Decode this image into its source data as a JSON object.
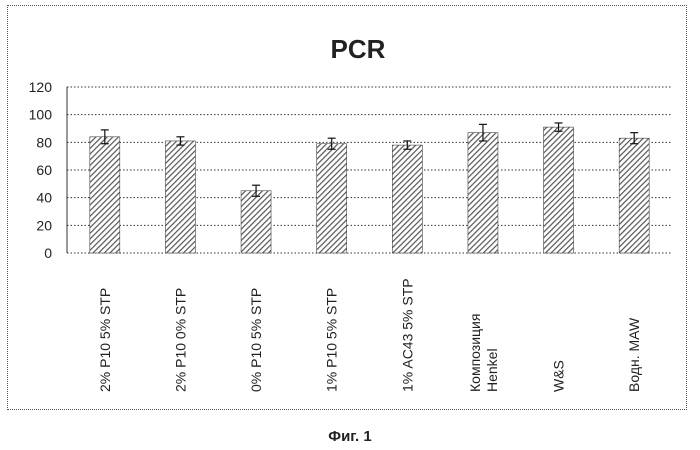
{
  "caption": "Фиг. 1",
  "chart_data": {
    "type": "bar",
    "title": "PCR",
    "xlabel": "",
    "ylabel": "",
    "ylim": [
      0,
      120
    ],
    "yticks": [
      0,
      20,
      40,
      60,
      80,
      100,
      120
    ],
    "grid": true,
    "legend": "none",
    "categories": [
      "2% P10 5% STP",
      "2% P10 0% STP",
      "0% P10 5% STP",
      "1% P10 5% STP",
      "1% AC43 5% STP",
      "Композиция Henkel",
      "W&S",
      "Водн. MAW"
    ],
    "values": [
      84,
      81,
      45,
      79,
      78,
      87,
      91,
      83
    ],
    "errors": [
      5,
      3,
      4,
      4,
      3,
      6,
      3,
      4
    ],
    "colors": {
      "bar_hatch": "#555555",
      "axis": "#333333",
      "grid": "#333333",
      "text": "#222222"
    }
  }
}
